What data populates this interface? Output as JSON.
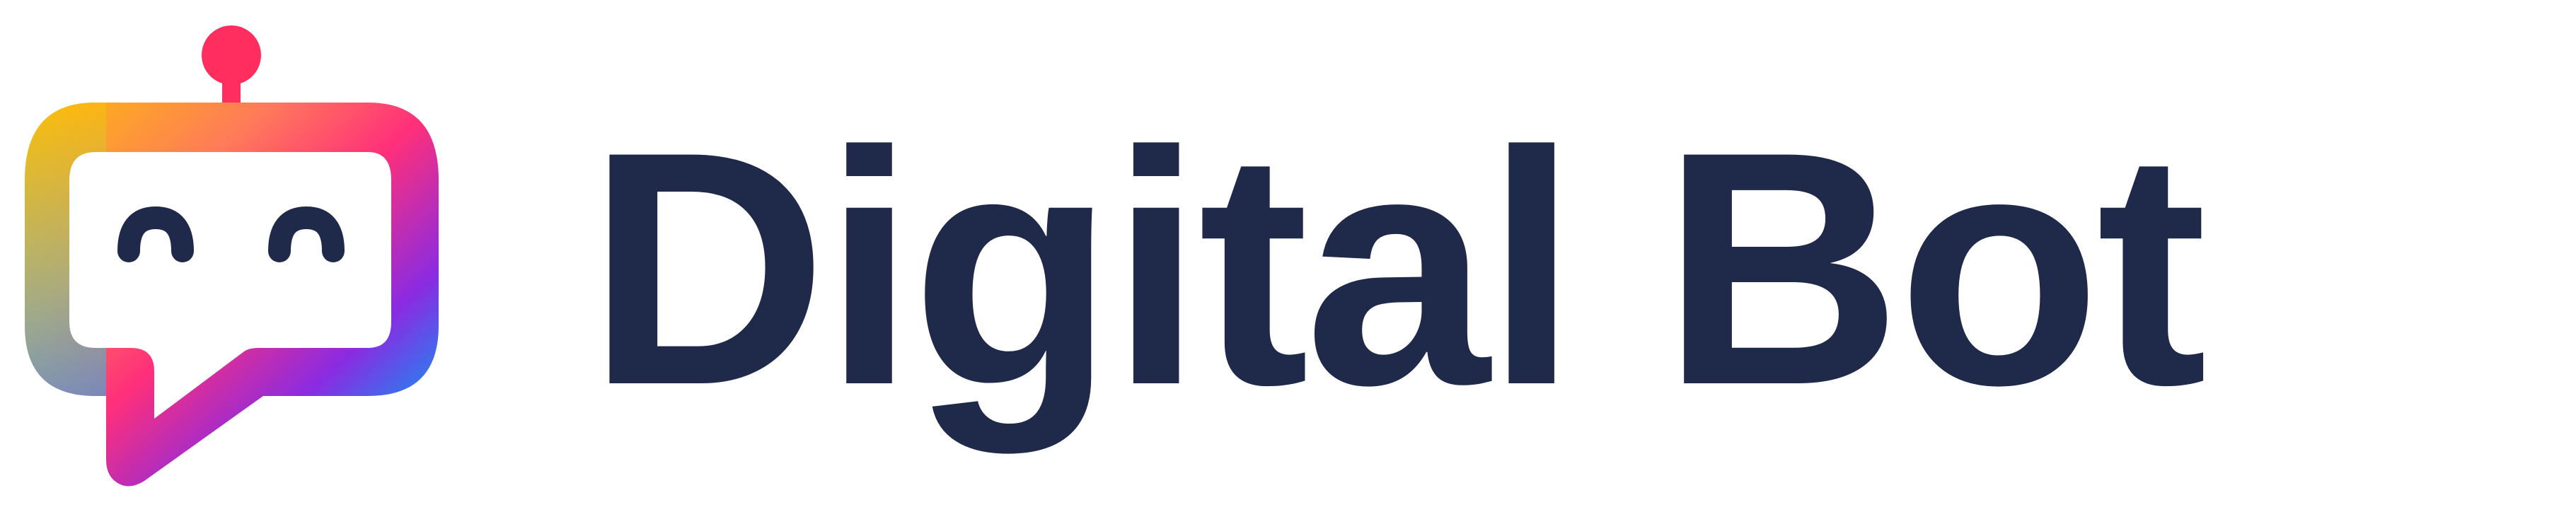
{
  "brand": {
    "wordmark": "Digital Bot",
    "text_color": "#1f2a4b",
    "icon": "chat-bot-icon",
    "gradient_colors": [
      "#fbbf09",
      "#ff7a5a",
      "#ff2f7a",
      "#8a2be2",
      "#3b3fe0",
      "#1e88f0",
      "#12c8f0",
      "#7ad08a"
    ],
    "antenna_color": "#ff2e5f",
    "eye_color": "#1f2a4b"
  }
}
